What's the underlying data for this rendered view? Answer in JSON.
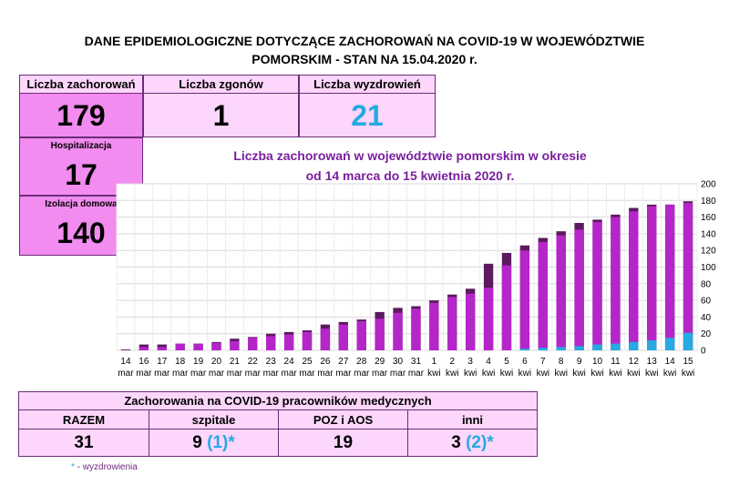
{
  "title": {
    "line1": "DANE EPIDEMIOLOGICZNE DOTYCZĄCE ZACHOROWAŃ NA COVID-19 W WOJEWÓDZTWIE",
    "line2": "POMORSKIM - STAN NA 15.04.2020 r."
  },
  "stats": {
    "cases_label": "Liczba zachorowań",
    "cases_value": "179",
    "deaths_label": "Liczba zgonów",
    "deaths_value": "1",
    "recovered_label": "Liczba wyzdrowień",
    "recovered_value": "21",
    "hosp_label": "Hospitalizacja",
    "hosp_value": "17",
    "iso_label": "Izolacja domowa",
    "iso_value": "140"
  },
  "chart_data": {
    "type": "bar",
    "title": "Liczba zachorowań w województwie pomorskim w okresie",
    "subtitle": "od 14 marca do 15 kwietnia 2020 r.",
    "ylim": [
      0,
      200
    ],
    "yticks": [
      0,
      20,
      40,
      60,
      80,
      100,
      120,
      140,
      160,
      180,
      200
    ],
    "grid": true,
    "categories": [
      {
        "day": "14",
        "month": "mar"
      },
      {
        "day": "16",
        "month": "mar"
      },
      {
        "day": "17",
        "month": "mar"
      },
      {
        "day": "18",
        "month": "mar"
      },
      {
        "day": "19",
        "month": "mar"
      },
      {
        "day": "20",
        "month": "mar"
      },
      {
        "day": "21",
        "month": "mar"
      },
      {
        "day": "22",
        "month": "mar"
      },
      {
        "day": "23",
        "month": "mar"
      },
      {
        "day": "24",
        "month": "mar"
      },
      {
        "day": "25",
        "month": "mar"
      },
      {
        "day": "26",
        "month": "mar"
      },
      {
        "day": "27",
        "month": "mar"
      },
      {
        "day": "28",
        "month": "mar"
      },
      {
        "day": "29",
        "month": "mar"
      },
      {
        "day": "30",
        "month": "mar"
      },
      {
        "day": "31",
        "month": "mar"
      },
      {
        "day": "1",
        "month": "kwi"
      },
      {
        "day": "2",
        "month": "kwi"
      },
      {
        "day": "3",
        "month": "kwi"
      },
      {
        "day": "4",
        "month": "kwi"
      },
      {
        "day": "5",
        "month": "kwi"
      },
      {
        "day": "6",
        "month": "kwi"
      },
      {
        "day": "7",
        "month": "kwi"
      },
      {
        "day": "8",
        "month": "kwi"
      },
      {
        "day": "9",
        "month": "kwi"
      },
      {
        "day": "10",
        "month": "kwi"
      },
      {
        "day": "11",
        "month": "kwi"
      },
      {
        "day": "12",
        "month": "kwi"
      },
      {
        "day": "13",
        "month": "kwi"
      },
      {
        "day": "14",
        "month": "kwi"
      },
      {
        "day": "15",
        "month": "kwi"
      }
    ],
    "totals": [
      1,
      7,
      7,
      8,
      8,
      10,
      14,
      16,
      20,
      22,
      24,
      31,
      34,
      37,
      46,
      51,
      53,
      60,
      67,
      74,
      104,
      117,
      126,
      135,
      143,
      153,
      157,
      163,
      171,
      175,
      175,
      179
    ],
    "series": [
      {
        "values": [
          0,
          4,
          4,
          8,
          8,
          9,
          11,
          15,
          17,
          19,
          22,
          26,
          31,
          35,
          38,
          45,
          50,
          57,
          64,
          68,
          75,
          102,
          120,
          130,
          138,
          145,
          154,
          160,
          167,
          173,
          175,
          177
        ],
        "color": "#b526c9"
      },
      {
        "values": [
          0,
          0,
          0,
          0,
          0,
          0,
          0,
          0,
          0,
          0,
          0,
          0,
          0,
          0,
          0,
          0,
          0,
          0,
          0,
          0,
          0,
          0,
          2,
          3,
          4,
          5,
          7,
          8,
          10,
          12,
          15,
          21
        ],
        "color": "#27a9e1"
      }
    ],
    "colors": {
      "top": "#5c1a5e",
      "grid": "#d9d9d9"
    }
  },
  "medical": {
    "title": "Zachorowania na COVID-19 pracowników medycznych",
    "razem_label": "RAZEM",
    "razem_value": "31",
    "szpitale_label": "szpitale",
    "szpitale_value": "9",
    "szpitale_extra": "(1)*",
    "poz_label": "POZ i AOS",
    "poz_value": "19",
    "inni_label": "inni",
    "inni_value": "3",
    "inni_extra": "(2)*",
    "footnote_star": "*",
    "footnote_text": "- wyzdrowienia"
  }
}
